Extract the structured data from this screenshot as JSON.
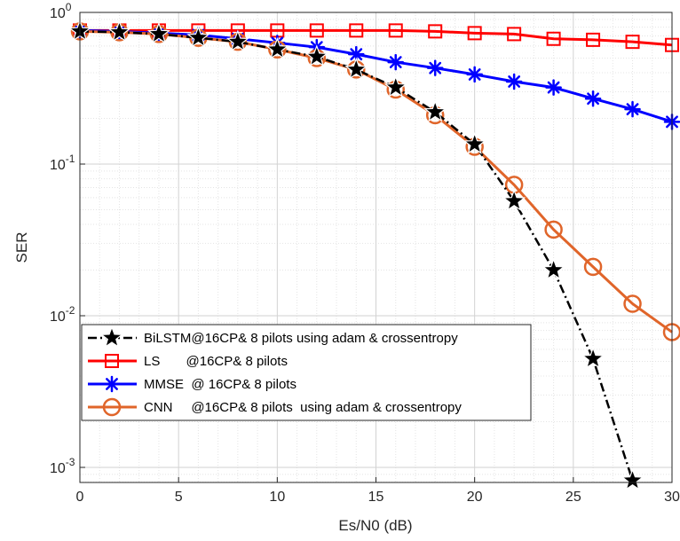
{
  "chart_data": {
    "type": "line",
    "title": "",
    "xlabel": "Es/N0 (dB)",
    "ylabel": "SER",
    "xlim": [
      0,
      30
    ],
    "ylim": [
      0.0008,
      1
    ],
    "yscale": "log",
    "grid": true,
    "minor_grid": true,
    "legend_position": "lower-left",
    "x": [
      0,
      2,
      4,
      6,
      8,
      10,
      12,
      14,
      16,
      18,
      20,
      22,
      24,
      26,
      28,
      30
    ],
    "xticks": [
      0,
      5,
      10,
      15,
      20,
      25,
      30
    ],
    "yticks": [
      {
        "value": 1,
        "base": "10",
        "exp": "0"
      },
      {
        "value": 0.1,
        "base": "10",
        "exp": "-1"
      },
      {
        "value": 0.01,
        "base": "10",
        "exp": "-2"
      },
      {
        "value": 0.001,
        "base": "10",
        "exp": "-3"
      }
    ],
    "series": [
      {
        "name": "BiLSTM@16CP& 8 pilots using adam & crossentropy",
        "color": "#000000",
        "marker": "star",
        "dash": "dashdot",
        "values": [
          0.75,
          0.74,
          0.72,
          0.68,
          0.64,
          0.57,
          0.51,
          0.42,
          0.32,
          0.22,
          0.135,
          0.057,
          0.02,
          0.0052,
          0.00082,
          null
        ]
      },
      {
        "name": "LS       @16CP& 8 pilots",
        "color": "#ff0000",
        "marker": "square",
        "dash": "solid",
        "values": [
          0.76,
          0.76,
          0.76,
          0.76,
          0.76,
          0.76,
          0.76,
          0.76,
          0.76,
          0.75,
          0.73,
          0.72,
          0.67,
          0.66,
          0.64,
          0.61
        ]
      },
      {
        "name": "MMSE  @ 16CP& 8 pilots",
        "color": "#0000ff",
        "marker": "asterisk",
        "dash": "solid",
        "values": [
          0.76,
          0.75,
          0.73,
          0.71,
          0.67,
          0.63,
          0.59,
          0.53,
          0.47,
          0.43,
          0.39,
          0.35,
          0.32,
          0.27,
          0.23,
          0.19
        ]
      },
      {
        "name": "CNN     @16CP& 8 pilots  using adam & crossentropy",
        "color": "#e0652a",
        "marker": "circle",
        "dash": "solid",
        "values": [
          0.75,
          0.74,
          0.72,
          0.68,
          0.64,
          0.57,
          0.5,
          0.42,
          0.31,
          0.21,
          0.13,
          0.073,
          0.037,
          0.021,
          0.012,
          0.0078
        ]
      }
    ]
  }
}
